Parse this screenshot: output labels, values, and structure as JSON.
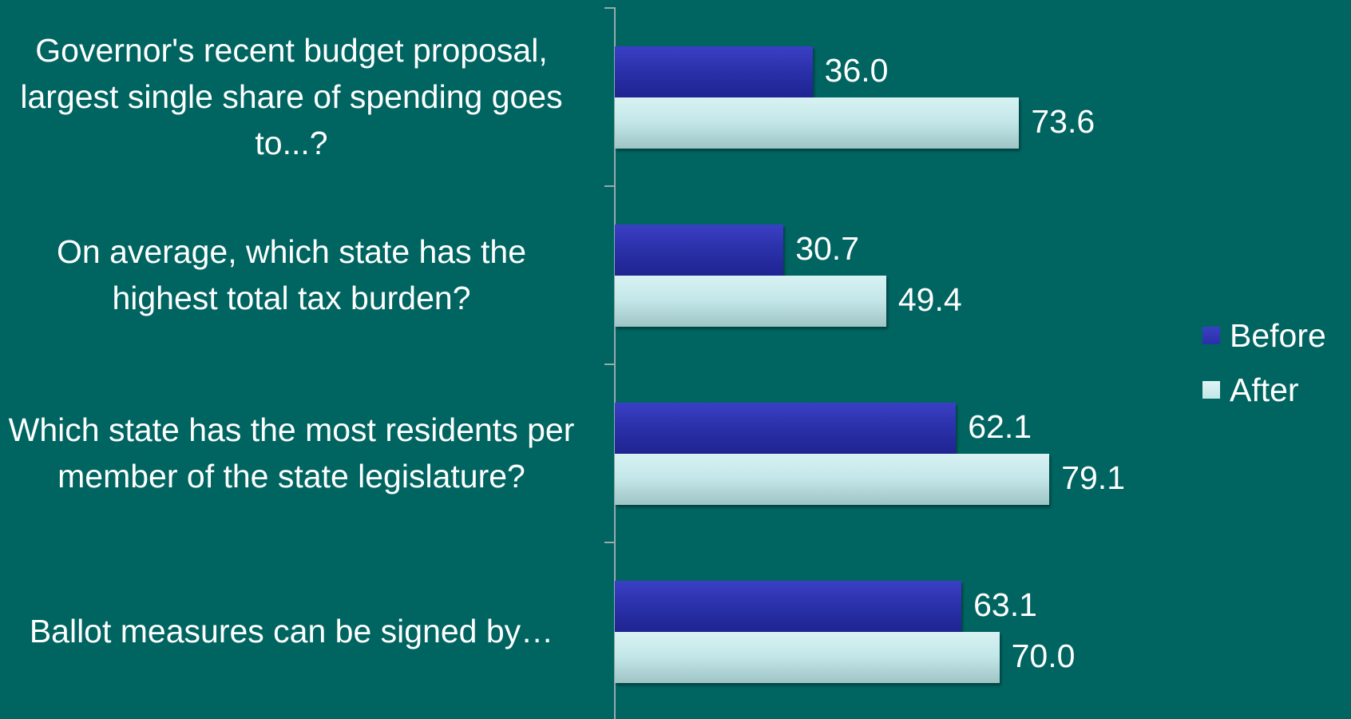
{
  "chart_data": {
    "type": "bar",
    "orientation": "horizontal",
    "categories": [
      "Governor's recent budget proposal, largest single share of spending goes to...?",
      "On average, which state has the highest total tax burden?",
      "Which state has the most residents per member of the state legislature?",
      "Ballot measures can be signed by…"
    ],
    "series": [
      {
        "name": "Before",
        "color": "#2a30a8",
        "values": [
          36.0,
          30.7,
          62.1,
          63.1
        ],
        "value_labels": [
          "36.0",
          "30.7",
          "62.1",
          "63.1"
        ]
      },
      {
        "name": "After",
        "color": "#c2e6e8",
        "values": [
          73.6,
          49.4,
          79.1,
          70.0
        ],
        "value_labels": [
          "73.6",
          "49.4",
          "79.1",
          "70.0"
        ]
      }
    ],
    "xlim": [
      0,
      100
    ],
    "legend": "right"
  }
}
